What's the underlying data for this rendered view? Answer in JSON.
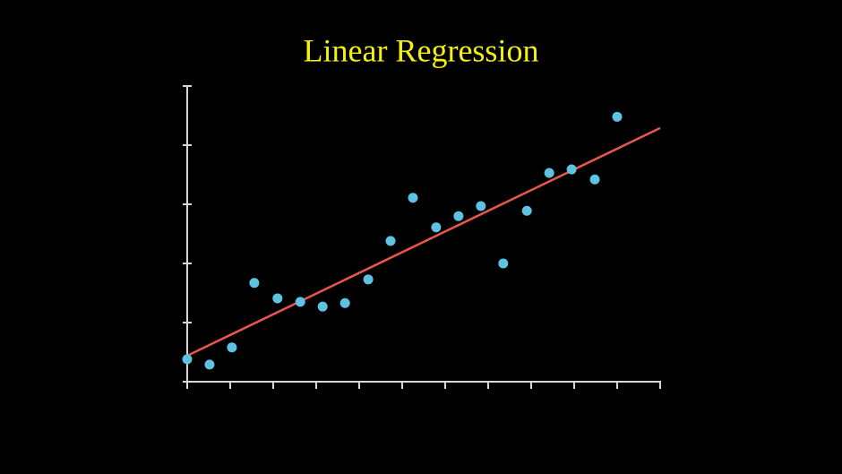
{
  "chart_data": {
    "type": "scatter",
    "title": "Linear Regression",
    "x": [
      0,
      0.52,
      1.04,
      1.56,
      2.1,
      2.63,
      3.15,
      3.67,
      4.21,
      4.73,
      5.25,
      5.79,
      6.31,
      6.83,
      7.35,
      7.9,
      8.42,
      8.94,
      9.48,
      10
    ],
    "values": [
      0.38,
      0.29,
      0.58,
      1.67,
      1.41,
      1.35,
      1.27,
      1.33,
      1.73,
      2.38,
      3.11,
      2.61,
      2.8,
      2.97,
      2.0,
      2.89,
      3.53,
      3.59,
      3.42,
      4.48
    ],
    "color": "#5ec3e3",
    "fit": {
      "x": [
        0,
        11
      ],
      "values": [
        0.44,
        4.29
      ],
      "color": "#e8574b"
    },
    "xlim": [
      0,
      11
    ],
    "xticks": [
      0,
      1,
      2,
      3,
      4,
      5,
      6,
      7,
      8,
      9,
      10,
      11
    ],
    "ylim": [
      0,
      5
    ],
    "yticks": [
      0,
      1,
      2,
      3,
      4,
      5
    ],
    "axis_color": "#d8d8d8",
    "title_color": "#f5f10a"
  }
}
